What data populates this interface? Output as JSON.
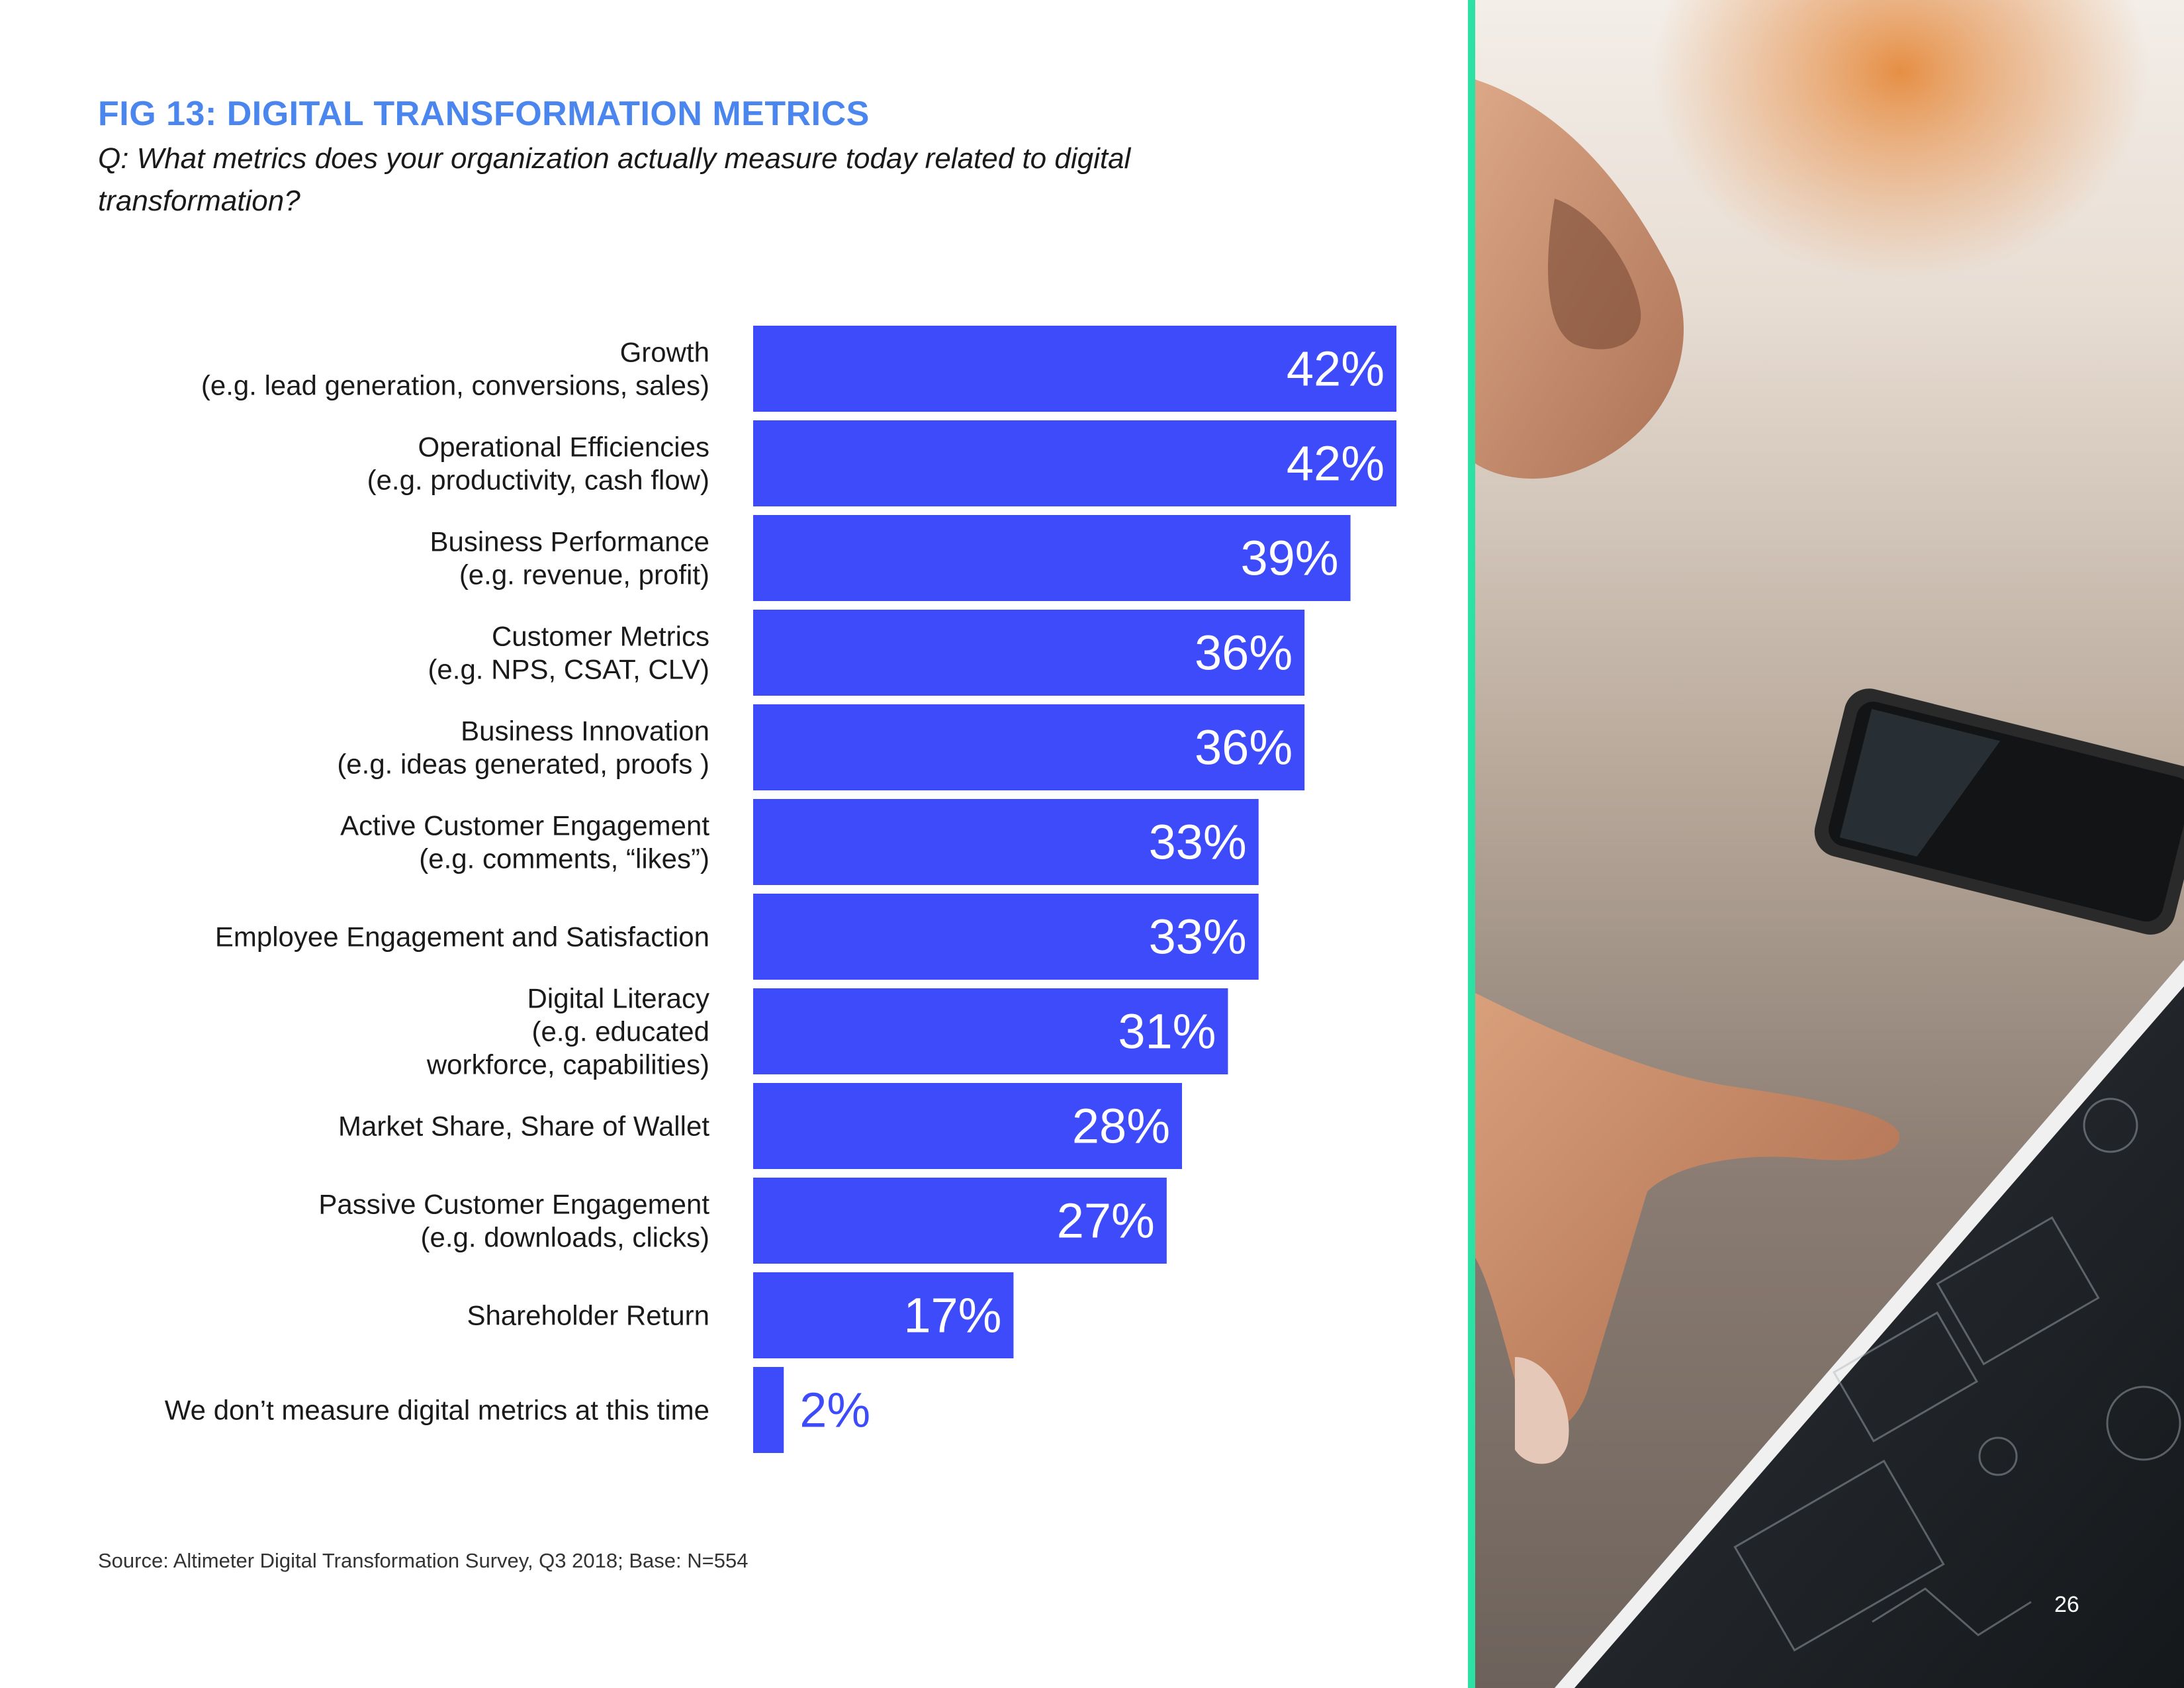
{
  "page": {
    "page_number": "26"
  },
  "figure": {
    "title": "FIG 13: DIGITAL TRANSFORMATION METRICS",
    "question": "Q: What metrics does your organization actually measure today related to digital transformation?",
    "source": "Source: Altimeter Digital Transformation Survey, Q3 2018; Base: N=554"
  },
  "colors": {
    "bar": "#3d4bfa",
    "accent_title": "#4a86ee",
    "divider": "#2de0a3"
  },
  "chart_data": {
    "type": "bar",
    "orientation": "horizontal",
    "title": "FIG 13: DIGITAL TRANSFORMATION METRICS",
    "xlabel": "",
    "ylabel": "",
    "xlim": [
      0,
      42
    ],
    "grid": false,
    "categories": [
      [
        "Growth",
        "(e.g. lead generation, conversions, sales)"
      ],
      [
        "Operational Efficiencies",
        "(e.g. productivity, cash flow)"
      ],
      [
        "Business Performance",
        "(e.g. revenue, profit)"
      ],
      [
        "Customer Metrics",
        "(e.g. NPS, CSAT, CLV)"
      ],
      [
        "Business Innovation",
        "(e.g. ideas generated, proofs )"
      ],
      [
        "Active Customer Engagement",
        "(e.g. comments, “likes”)"
      ],
      [
        "Employee Engagement and Satisfaction"
      ],
      [
        "Digital Literacy",
        "(e.g. educated",
        "workforce, capabilities)"
      ],
      [
        "Market Share, Share of Wallet"
      ],
      [
        "Passive Customer Engagement",
        "(e.g. downloads, clicks)"
      ],
      [
        "Shareholder Return"
      ],
      [
        "We don’t measure digital metrics at this time"
      ]
    ],
    "values": [
      42,
      42,
      39,
      36,
      36,
      33,
      33,
      31,
      28,
      27,
      17,
      2
    ],
    "value_labels": [
      "42%",
      "42%",
      "39%",
      "36%",
      "36%",
      "33%",
      "33%",
      "31%",
      "28%",
      "27%",
      "17%",
      "2%"
    ]
  }
}
